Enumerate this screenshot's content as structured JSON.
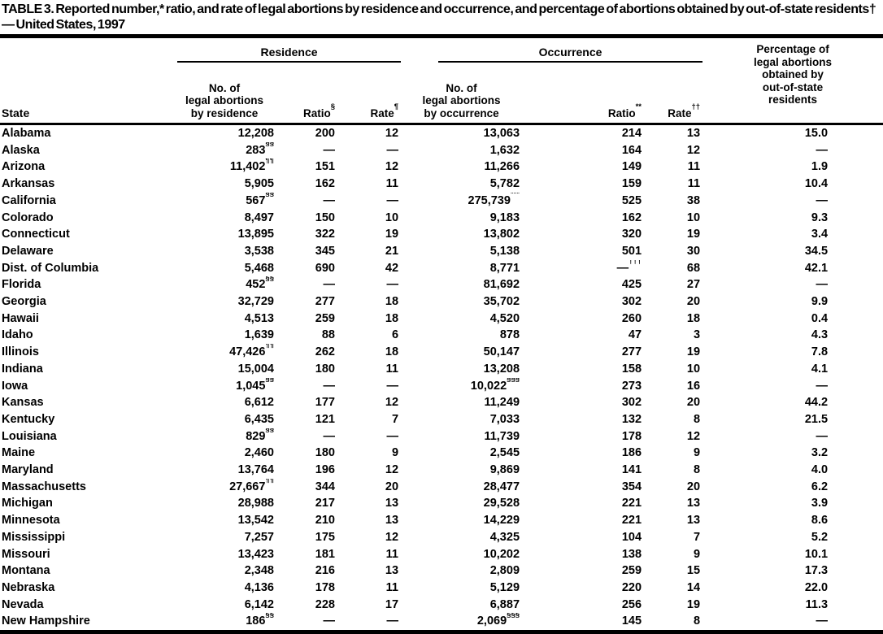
{
  "title": "TABLE 3. Reported number,* ratio, and rate of legal abortions by residence and occurrence, and percentage of abortions obtained by out-of-state residents† — United States, 1997",
  "table": {
    "group_headers": {
      "residence": "Residence",
      "occurrence": "Occurrence"
    },
    "columns": {
      "state": "State",
      "res_no": "No. of\nlegal abortions\nby residence",
      "res_ratio": "Ratio§",
      "res_rate": "Rate¶",
      "occ_no": "No. of\nlegal abortions\nby occurrence",
      "occ_ratio": "Ratio**",
      "occ_rate": "Rate††",
      "pct": "Percentage of\nlegal abortions\nobtained by\nout-of-state\nresidents"
    },
    "rows": [
      [
        "Alabama",
        "12,208",
        "200",
        "12",
        "13,063",
        "214",
        "13",
        "15.0"
      ],
      [
        "Alaska",
        "283§§",
        "—",
        "—",
        "1,632",
        "164",
        "12",
        "—"
      ],
      [
        "Arizona",
        "11,402¶¶",
        "151",
        "12",
        "11,266",
        "149",
        "11",
        "1.9"
      ],
      [
        "Arkansas",
        "5,905",
        "162",
        "11",
        "5,782",
        "159",
        "11",
        "10.4"
      ],
      [
        "California",
        "567§§",
        "—",
        "—",
        "275,739***",
        "525",
        "38",
        "—"
      ],
      [
        "Colorado",
        "8,497",
        "150",
        "10",
        "9,183",
        "162",
        "10",
        "9.3"
      ],
      [
        "Connecticut",
        "13,895",
        "322",
        "19",
        "13,802",
        "320",
        "19",
        "3.4"
      ],
      [
        "Delaware",
        "3,538",
        "345",
        "21",
        "5,138",
        "501",
        "30",
        "34.5"
      ],
      [
        "Dist. of Columbia",
        "5,468",
        "690",
        "42",
        "8,771",
        "—†††",
        "68",
        "42.1"
      ],
      [
        "Florida",
        "452§§",
        "—",
        "—",
        "81,692",
        "425",
        "27",
        "—"
      ],
      [
        "Georgia",
        "32,729",
        "277",
        "18",
        "35,702",
        "302",
        "20",
        "9.9"
      ],
      [
        "Hawaii",
        "4,513",
        "259",
        "18",
        "4,520",
        "260",
        "18",
        "0.4"
      ],
      [
        "Idaho",
        "1,639",
        "88",
        "6",
        "878",
        "47",
        "3",
        "4.3"
      ],
      [
        "Illinois",
        "47,426¶¶",
        "262",
        "18",
        "50,147",
        "277",
        "19",
        "7.8"
      ],
      [
        "Indiana",
        "15,004",
        "180",
        "11",
        "13,208",
        "158",
        "10",
        "4.1"
      ],
      [
        "Iowa",
        "1,045§§",
        "—",
        "—",
        "10,022§§§",
        "273",
        "16",
        "—"
      ],
      [
        "Kansas",
        "6,612",
        "177",
        "12",
        "11,249",
        "302",
        "20",
        "44.2"
      ],
      [
        "Kentucky",
        "6,435",
        "121",
        "7",
        "7,033",
        "132",
        "8",
        "21.5"
      ],
      [
        "Louisiana",
        "829§§",
        "—",
        "—",
        "11,739",
        "178",
        "12",
        "—"
      ],
      [
        "Maine",
        "2,460",
        "180",
        "9",
        "2,545",
        "186",
        "9",
        "3.2"
      ],
      [
        "Maryland",
        "13,764",
        "196",
        "12",
        "9,869",
        "141",
        "8",
        "4.0"
      ],
      [
        "Massachusetts",
        "27,667¶¶",
        "344",
        "20",
        "28,477",
        "354",
        "20",
        "6.2"
      ],
      [
        "Michigan",
        "28,988",
        "217",
        "13",
        "29,528",
        "221",
        "13",
        "3.9"
      ],
      [
        "Minnesota",
        "13,542",
        "210",
        "13",
        "14,229",
        "221",
        "13",
        "8.6"
      ],
      [
        "Mississippi",
        "7,257",
        "175",
        "12",
        "4,325",
        "104",
        "7",
        "5.2"
      ],
      [
        "Missouri",
        "13,423",
        "181",
        "11",
        "10,202",
        "138",
        "9",
        "10.1"
      ],
      [
        "Montana",
        "2,348",
        "216",
        "13",
        "2,809",
        "259",
        "15",
        "17.3"
      ],
      [
        "Nebraska",
        "4,136",
        "178",
        "11",
        "5,129",
        "220",
        "14",
        "22.0"
      ],
      [
        "Nevada",
        "6,142",
        "228",
        "17",
        "6,887",
        "256",
        "19",
        "11.3"
      ],
      [
        "New Hampshire",
        "186§§",
        "—",
        "—",
        "2,069§§§",
        "145",
        "8",
        "—"
      ]
    ]
  }
}
